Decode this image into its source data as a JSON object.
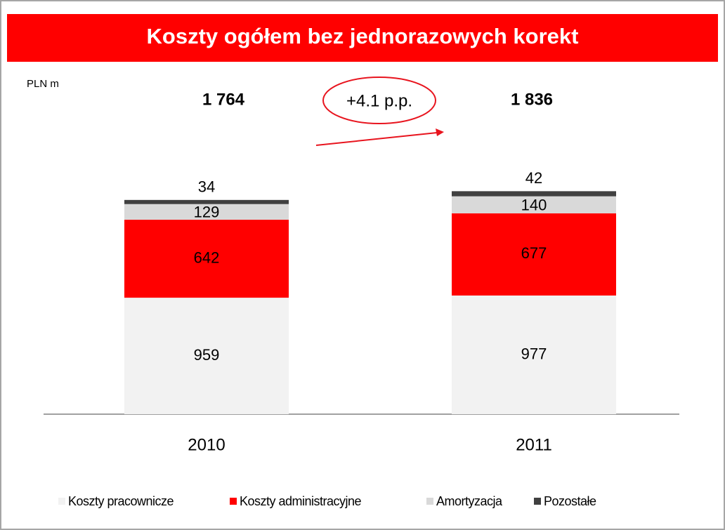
{
  "chart_data": {
    "type": "stacked_bar",
    "title": "Koszty ogółem bez jednorazowych korekt",
    "unit_label": "PLN m",
    "change_label": "+4.1 p.p.",
    "categories": [
      "2010",
      "2011"
    ],
    "totals": [
      1764,
      1836
    ],
    "totals_labels": [
      "1 764",
      "1 836"
    ],
    "series": [
      {
        "name": "Koszty pracownicze",
        "color": "#f2f2f2",
        "values": [
          959,
          977
        ]
      },
      {
        "name": "Koszty administracyjne",
        "color": "#ff0000",
        "values": [
          642,
          677
        ]
      },
      {
        "name": "Amortyzacja",
        "color": "#d9d9d9",
        "values": [
          129,
          140
        ]
      },
      {
        "name": "Pozostałe",
        "color": "#404040",
        "values": [
          34,
          42
        ]
      }
    ],
    "legend": "bottom"
  }
}
